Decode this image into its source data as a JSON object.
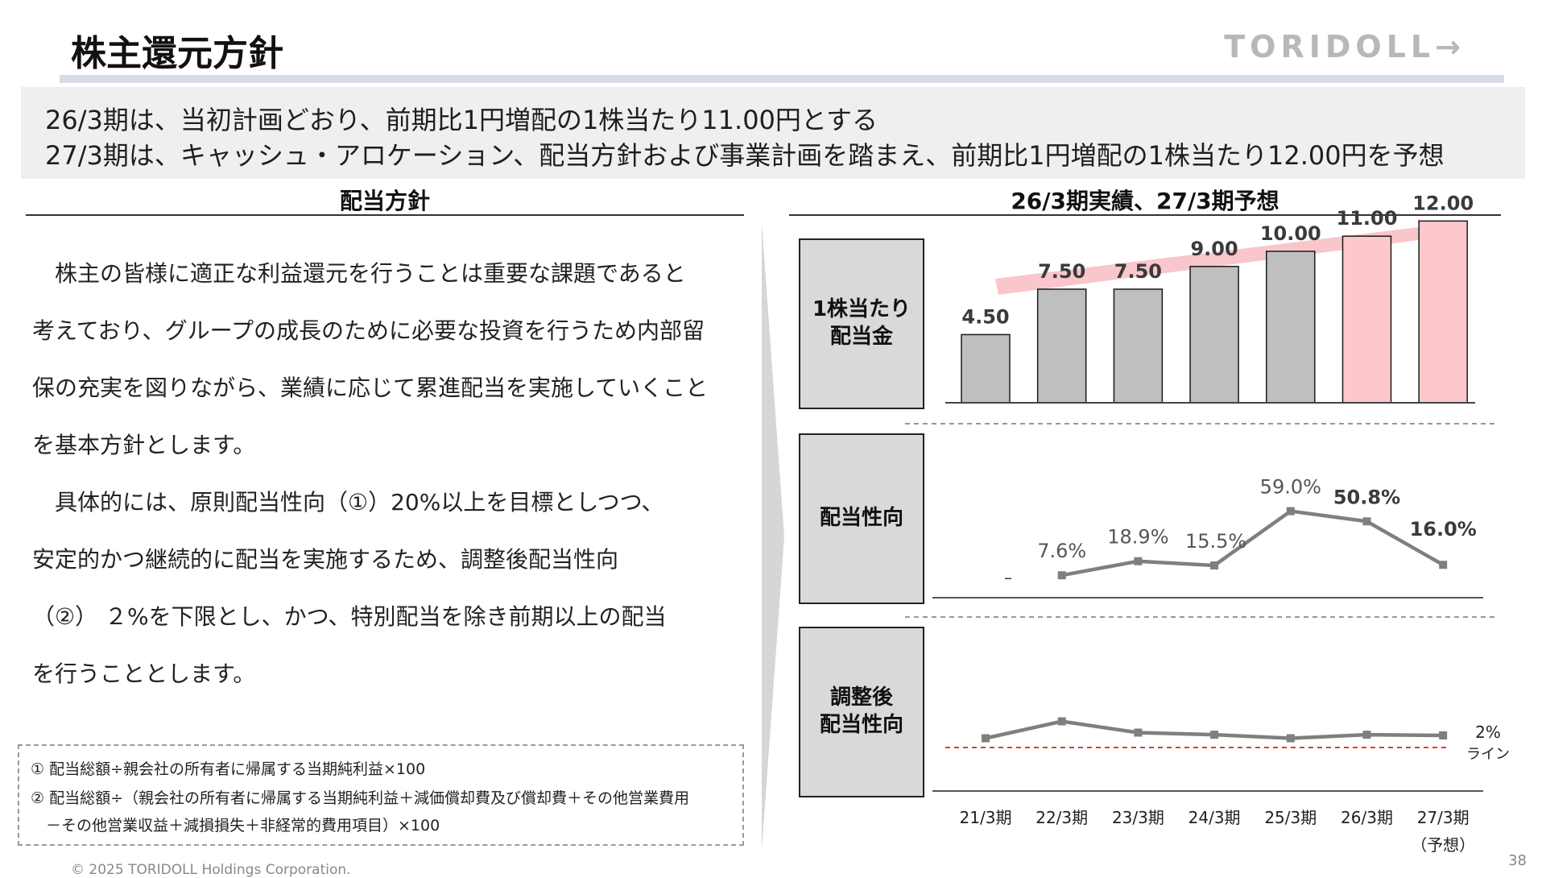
{
  "page": {
    "title": "株主還元方針",
    "logo": "TORIDOLL→",
    "page_number": "38",
    "copyright": "© 2025 TORIDOLL Holdings Corporation."
  },
  "summary": {
    "line1": "26/3期は、当初計画どおり、前期比1円増配の1株当たり11.00円とする",
    "line2": "27/3期は、キャッシュ・アロケーション、配当方針および事業計画を踏まえ、前期比1円増配の1株当たり12.00円を予想"
  },
  "policy": {
    "heading": "配当方針",
    "lines": [
      "　株主の皆様に適正な利益還元を行うことは重要な課題であると",
      "考えており、グループの成長のために必要な投資を行うため内部留",
      "保の充実を図りながら、業績に応じて累進配当を実施していくこと",
      "を基本方針とします。",
      "　具体的には、原則配当性向（①）20%以上を目標としつつ、",
      "安定的かつ継続的に配当を実施するため、調整後配当性向",
      "（②） ２%を下限とし、かつ、特別配当を除き前期以上の配当",
      "を行うこととします。"
    ],
    "notes": [
      "① 配当総額÷親会社の所有者に帰属する当期純利益×100",
      "② 配当総額÷（親会社の所有者に帰属する当期純利益＋減価償却費及び償却費＋その他営業費用",
      "　－その他営業収益＋減損損失＋非経常的費用項目）×100"
    ]
  },
  "chart_heading": "26/3期実績、27/3期予想",
  "row_labels": {
    "dividend": "1株当たり\n配当金",
    "payout": "配当性向",
    "adjusted": "調整後\n配当性向"
  },
  "colors": {
    "bar_actual": "#bfbfbf",
    "bar_highlight": "#fcc8cc",
    "arrow": "#f9c6cb",
    "line": "#7f7f7f",
    "threshold": "#e53935"
  },
  "chart_data": [
    {
      "type": "bar",
      "categories": [
        "21/3期",
        "22/3期",
        "23/3期",
        "24/3期",
        "25/3期",
        "26/3期",
        "27/3期"
      ],
      "category_sub": [
        "",
        "",
        "",
        "",
        "",
        "",
        "（予想）"
      ],
      "values": [
        4.5,
        7.5,
        7.5,
        9.0,
        10.0,
        11.0,
        12.0
      ],
      "labels": [
        "4.50",
        "7.50",
        "7.50",
        "9.00",
        "10.00",
        "11.00",
        "12.00"
      ],
      "highlight": [
        false,
        false,
        false,
        false,
        false,
        true,
        true
      ]
    },
    {
      "type": "line",
      "categories": [
        "21/3期",
        "22/3期",
        "23/3期",
        "24/3期",
        "25/3期",
        "26/3期",
        "27/3期"
      ],
      "values": [
        null,
        7.6,
        18.9,
        15.5,
        59.0,
        50.8,
        16.0
      ],
      "labels": [
        "–",
        "7.6%",
        "18.9%",
        "15.5%",
        "59.0%",
        "50.8%",
        "16.0%"
      ],
      "bold_labels": [
        false,
        false,
        false,
        false,
        false,
        true,
        true
      ]
    },
    {
      "type": "line",
      "categories": [
        "21/3期",
        "22/3期",
        "23/3期",
        "24/3期",
        "25/3期",
        "26/3期",
        "27/3期"
      ],
      "values": [
        2.2,
        3.4,
        2.6,
        2.45,
        2.2,
        2.45,
        2.4
      ],
      "threshold": 2,
      "threshold_label_1": "2%",
      "threshold_label_2": "ライン"
    }
  ]
}
